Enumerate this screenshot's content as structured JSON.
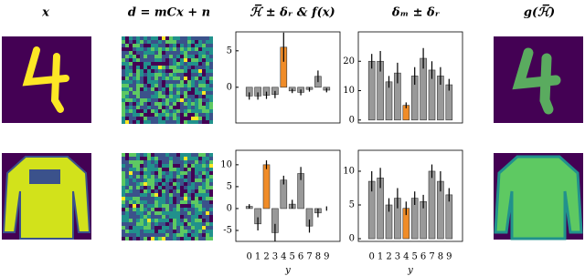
{
  "columns": [
    "x",
    "d = mCx + n",
    "ℋ̅ ± δᵣ & f(x)",
    "δₘ ± δᵣ",
    "g(ℋ̅)"
  ],
  "chart_data": [
    {
      "type": "bar",
      "values": [
        -1.2,
        -1.2,
        -1.1,
        -1.0,
        5.5,
        -0.5,
        -0.7,
        -0.3,
        1.5,
        -0.4
      ],
      "errors": [
        0.5,
        0.5,
        0.5,
        0.5,
        2.0,
        0.3,
        0.4,
        0.3,
        0.8,
        0.3
      ],
      "colors": [
        "#999999",
        "#999999",
        "#999999",
        "#999999",
        "#f08c28",
        "#999999",
        "#999999",
        "#999999",
        "#999999",
        "#999999"
      ],
      "ylim": [
        -4.9,
        7.6
      ],
      "yticks": [
        0,
        5
      ]
    },
    {
      "type": "bar",
      "values": [
        20,
        20,
        13,
        16,
        5,
        15,
        21,
        17,
        15,
        12
      ],
      "errors": [
        2.5,
        3.5,
        2,
        3.5,
        1,
        3,
        3.5,
        3,
        3,
        2
      ],
      "colors": [
        "#999999",
        "#999999",
        "#999999",
        "#999999",
        "#f08c28",
        "#999999",
        "#999999",
        "#999999",
        "#999999",
        "#999999"
      ],
      "ylim": [
        -1,
        30
      ],
      "yticks": [
        0,
        10,
        20
      ]
    },
    {
      "type": "bar",
      "categories": [
        "0",
        "1",
        "2",
        "3",
        "4",
        "5",
        "6",
        "7",
        "8",
        "9"
      ],
      "x_label": "y",
      "values": [
        0.5,
        -3.5,
        10,
        -5.5,
        6.5,
        1,
        8,
        -4,
        -1,
        0
      ],
      "errors": [
        0.5,
        1.5,
        1,
        2,
        1,
        1,
        1.5,
        1.5,
        1,
        0.5
      ],
      "colors": [
        "#999999",
        "#999999",
        "#f08c28",
        "#999999",
        "#999999",
        "#999999",
        "#999999",
        "#999999",
        "#999999",
        "#999999"
      ],
      "ylim": [
        -7.5,
        13.3
      ],
      "yticks": [
        -5,
        0,
        5,
        10
      ]
    },
    {
      "type": "bar",
      "categories": [
        "0",
        "1",
        "2",
        "3",
        "4",
        "5",
        "6",
        "7",
        "8",
        "9"
      ],
      "x_label": "y",
      "values": [
        8.5,
        9,
        5,
        6,
        4.5,
        6,
        5.5,
        10,
        8.5,
        6.5
      ],
      "errors": [
        1.5,
        1.5,
        1,
        1.5,
        1,
        1,
        1,
        1,
        1.5,
        1
      ],
      "colors": [
        "#999999",
        "#999999",
        "#999999",
        "#999999",
        "#f08c28",
        "#999999",
        "#999999",
        "#999999",
        "#999999",
        "#999999"
      ],
      "ylim": [
        -0.4,
        13.1
      ],
      "yticks": [
        0,
        5,
        10
      ]
    }
  ]
}
